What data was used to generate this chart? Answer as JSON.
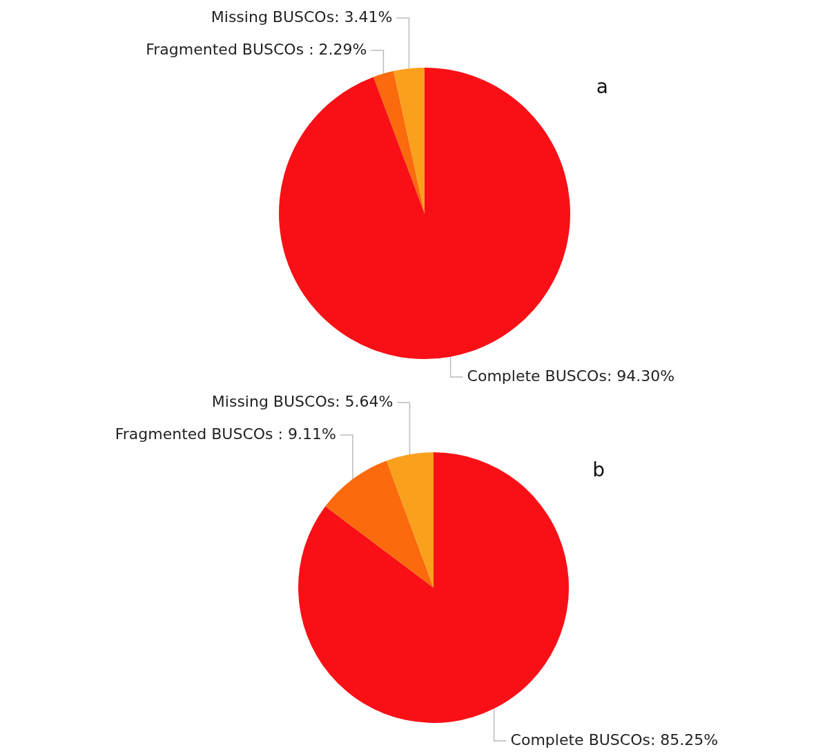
{
  "chart_data": [
    {
      "type": "pie",
      "title": "a",
      "legend": false,
      "categories": [
        "Complete BUSCOs",
        "Fragmented BUSCOs ",
        "Missing BUSCOs"
      ],
      "values": [
        94.3,
        2.29,
        3.41
      ],
      "colors": [
        "#f91016",
        "#fb6a0c",
        "#fba01c"
      ],
      "value_labels": [
        "94.30%",
        "2.29%",
        "3.41%"
      ]
    },
    {
      "type": "pie",
      "title": "b",
      "legend": false,
      "categories": [
        "Complete BUSCOs",
        "Fragmented BUSCOs ",
        "Missing BUSCOs"
      ],
      "values": [
        85.25,
        9.11,
        5.64
      ],
      "colors": [
        "#f91016",
        "#fb6a0c",
        "#fba01c"
      ],
      "value_labels": [
        "85.25%",
        "9.11%",
        "5.64%"
      ]
    }
  ]
}
